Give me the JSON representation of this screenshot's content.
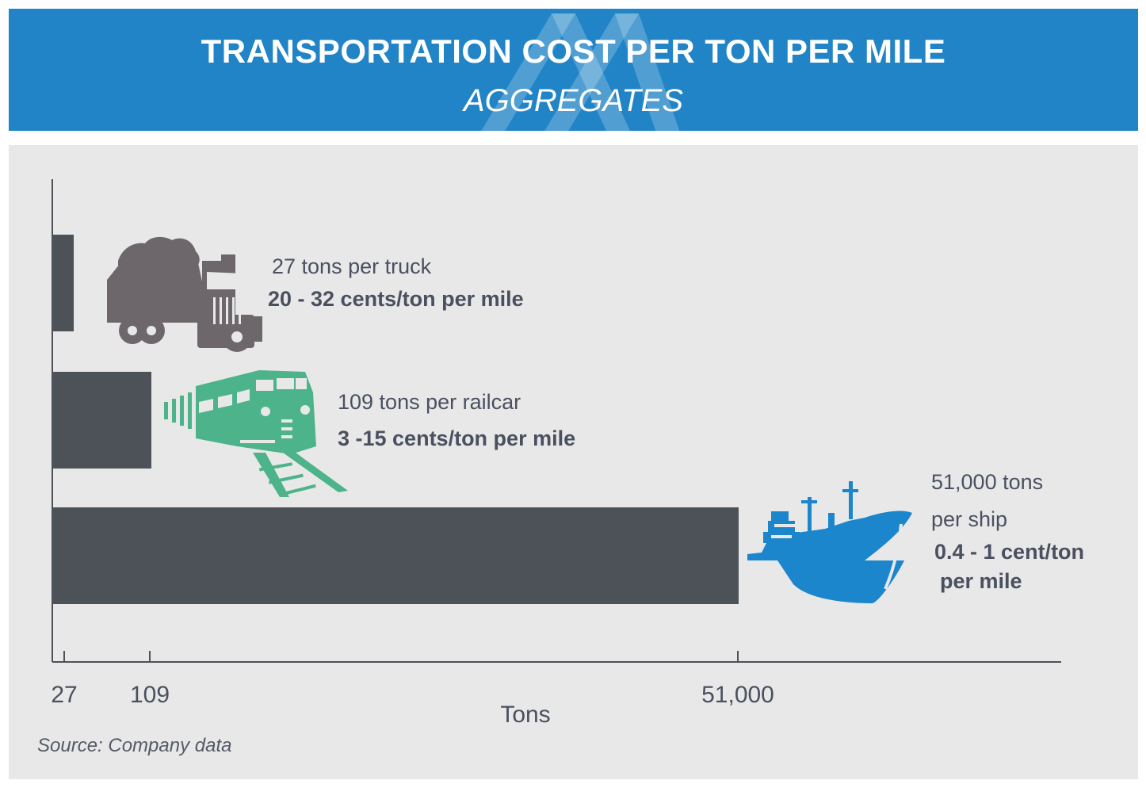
{
  "header": {
    "title": "TRANSPORTATION COST PER TON PER MILE",
    "subtitle": "AGGREGATES"
  },
  "chart_data": {
    "type": "bar",
    "orientation": "horizontal",
    "title": "TRANSPORTATION COST PER TON PER MILE",
    "subtitle": "AGGREGATES",
    "xlabel": "Tons",
    "ylabel": "",
    "x_ticks": [
      "27",
      "109",
      "51,000"
    ],
    "categories": [
      "Truck",
      "Railcar",
      "Ship"
    ],
    "values": [
      27,
      109,
      51000
    ],
    "bar_color": "#4d5158",
    "annotations": [
      {
        "capacity": "27 tons per truck",
        "cost": "20 - 32  cents/ton per mile",
        "icon": "truck-icon",
        "icon_color": "#6d676b"
      },
      {
        "capacity": "109 tons per railcar",
        "cost": "3 -15 cents/ton per mile",
        "icon": "train-icon",
        "icon_color": "#4db38a"
      },
      {
        "capacity_line1": "51,000 tons",
        "capacity_line2": "per ship",
        "cost_line1": "0.4 - 1  cent/ton",
        "cost_line2": "per mile",
        "icon": "ship-icon",
        "icon_color": "#1b86cc"
      }
    ],
    "source": "Source: Company data"
  },
  "colors": {
    "header_bg": "#2084c6",
    "panel_bg": "#e8e8e8",
    "bar": "#4d5158",
    "text": "#4a5060"
  }
}
